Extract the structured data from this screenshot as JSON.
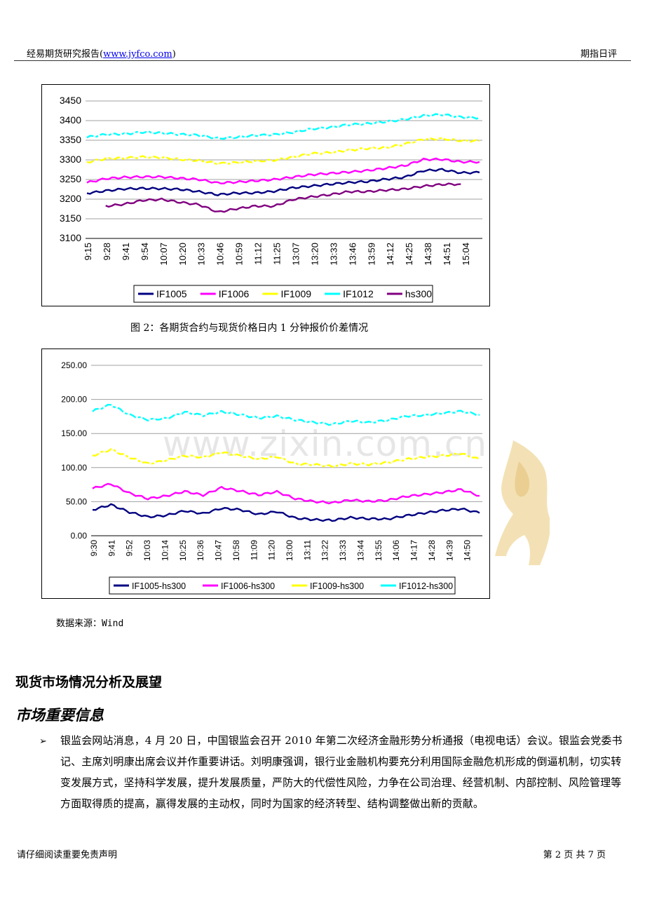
{
  "header": {
    "left_prefix": "经易期货研究报告(",
    "link": "www.jyfco.com",
    "left_suffix": ")",
    "right": "期指日评"
  },
  "chart_data": [
    {
      "type": "line",
      "title": "",
      "xlabel": "",
      "ylabel": "",
      "ylim": [
        3100,
        3450
      ],
      "yticks": [
        "3100",
        "3150",
        "3200",
        "3250",
        "3300",
        "3350",
        "3400",
        "3450"
      ],
      "x_ticks": [
        "9:15",
        "9:28",
        "9:41",
        "9:54",
        "10:07",
        "10:20",
        "10:33",
        "10:46",
        "10:59",
        "11:12",
        "11:25",
        "13:07",
        "13:20",
        "13:33",
        "13:46",
        "13:59",
        "14:12",
        "14:25",
        "14:38",
        "14:51",
        "15:04"
      ],
      "grid": true,
      "legend": "bottom",
      "series": [
        {
          "name": "IF1005",
          "color": "#000080",
          "values": [
            3215,
            3222,
            3225,
            3228,
            3227,
            3224,
            3220,
            3211,
            3215,
            3217,
            3219,
            3229,
            3234,
            3237,
            3243,
            3245,
            3250,
            3257,
            3272,
            3275,
            3268,
            3267
          ]
        },
        {
          "name": "IF1006",
          "color": "#ff00ff",
          "values": [
            3243,
            3252,
            3255,
            3258,
            3256,
            3253,
            3251,
            3240,
            3244,
            3247,
            3249,
            3257,
            3262,
            3265,
            3270,
            3272,
            3279,
            3286,
            3300,
            3302,
            3295,
            3294
          ]
        },
        {
          "name": "IF1009",
          "color": "#ffff00",
          "values": [
            3295,
            3302,
            3305,
            3308,
            3305,
            3302,
            3298,
            3290,
            3294,
            3296,
            3299,
            3308,
            3315,
            3319,
            3325,
            3328,
            3332,
            3340,
            3352,
            3355,
            3348,
            3348
          ]
        },
        {
          "name": "IF1012",
          "color": "#00ffff",
          "values": [
            3358,
            3364,
            3367,
            3370,
            3368,
            3366,
            3362,
            3355,
            3358,
            3361,
            3365,
            3370,
            3378,
            3384,
            3389,
            3392,
            3398,
            3402,
            3413,
            3416,
            3408,
            3408
          ]
        },
        {
          "name": "hs300",
          "color": "#800080",
          "values": [
            null,
            3182,
            3188,
            3196,
            3200,
            3192,
            3185,
            3168,
            3175,
            3182,
            3183,
            3198,
            3206,
            3212,
            3218,
            3220,
            3223,
            3225,
            3234,
            3237,
            3238,
            null
          ]
        }
      ]
    },
    {
      "type": "line",
      "title": "",
      "xlabel": "",
      "ylabel": "",
      "ylim": [
        0,
        250
      ],
      "yticks": [
        "0.00",
        "50.00",
        "100.00",
        "150.00",
        "200.00",
        "250.00"
      ],
      "x_ticks": [
        "9:30",
        "9:41",
        "9:52",
        "10:03",
        "10:14",
        "10:25",
        "10:36",
        "10:47",
        "10:58",
        "11:09",
        "11:20",
        "13:00",
        "13:11",
        "13:22",
        "13:33",
        "13:44",
        "13:55",
        "14:06",
        "14:17",
        "14:28",
        "14:39",
        "14:50"
      ],
      "grid": true,
      "legend": "bottom",
      "series": [
        {
          "name": "IF1005-hs300",
          "color": "#000080",
          "values": [
            38,
            46,
            34,
            28,
            30,
            36,
            33,
            40,
            38,
            32,
            35,
            26,
            24,
            22,
            27,
            25,
            24,
            30,
            33,
            37,
            40,
            33
          ]
        },
        {
          "name": "IF1006-hs300",
          "color": "#ff00ff",
          "values": [
            70,
            76,
            62,
            55,
            58,
            65,
            60,
            70,
            66,
            60,
            64,
            55,
            50,
            48,
            53,
            50,
            52,
            58,
            60,
            64,
            68,
            58
          ]
        },
        {
          "name": "IF1009-hs300",
          "color": "#ffff00",
          "values": [
            118,
            126,
            115,
            106,
            110,
            118,
            115,
            122,
            118,
            112,
            116,
            106,
            104,
            102,
            106,
            104,
            108,
            112,
            115,
            118,
            120,
            112
          ]
        },
        {
          "name": "IF1012-hs300",
          "color": "#00ffff",
          "values": [
            183,
            192,
            178,
            170,
            172,
            182,
            176,
            182,
            178,
            172,
            176,
            170,
            166,
            164,
            168,
            166,
            170,
            175,
            177,
            180,
            182,
            178
          ]
        }
      ]
    }
  ],
  "caption": "图 2：各期货合约与现货价格日内 1 分钟报价价差情况",
  "source": "数据来源：Wind",
  "watermark": "www.zixin.com.cn",
  "section_title": "现货市场情况分析及展望",
  "subsection_title": "市场重要信息",
  "bullet": "➢",
  "paragraph": "银监会网站消息，4 月 20 日，中国银监会召开 2010 年第二次经济金融形势分析通报（电视电话）会议。银监会党委书记、主席刘明康出席会议并作重要讲话。刘明康强调，银行业金融机构要充分利用国际金融危机形成的倒逼机制，切实转变发展方式，坚持科学发展，提升发展质量，严防大的代偿性风险，力争在公司治理、经营机制、内部控制、风险管理等方面取得质的提高，赢得发展的主动权，同时为国家的经济转型、结构调整做出新的贡献。",
  "footer": {
    "left": "请仔细阅读重要免责声明",
    "right": "第 2 页  共  7  页"
  }
}
